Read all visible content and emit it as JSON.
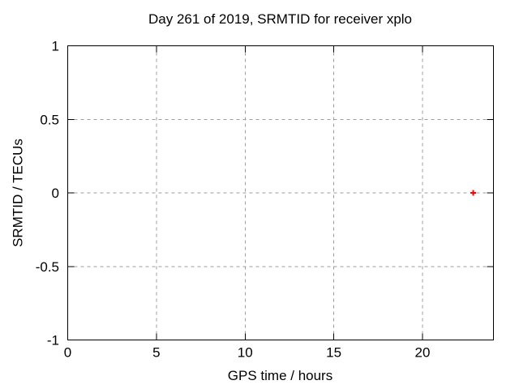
{
  "window": {
    "background": "#ffffff"
  },
  "chart_data": {
    "type": "scatter",
    "title": "Day 261 of 2019, SRMTID for receiver xplo",
    "xlabel": "GPS time / hours",
    "ylabel": "SRMTID / TECUs",
    "xlim": [
      0,
      24
    ],
    "ylim": [
      -1,
      1
    ],
    "xticks": [
      0,
      5,
      10,
      15,
      20
    ],
    "xtick_labels": [
      "0",
      "5",
      "10",
      "15",
      "20"
    ],
    "yticks": [
      -1,
      -0.5,
      0,
      0.5,
      1
    ],
    "ytick_labels": [
      "-1",
      "-0.5",
      "0",
      "0.5",
      "1"
    ],
    "grid": {
      "show": true,
      "line_style": "dashed",
      "color": "#9e9e9e"
    },
    "border_color": "#000000",
    "text_color": "#000000",
    "legend": "none",
    "series": [
      {
        "name": "SRMTID",
        "marker": "plus",
        "color": "#ff0000",
        "points": [
          {
            "x": 22.86,
            "y": 0
          }
        ]
      }
    ]
  }
}
